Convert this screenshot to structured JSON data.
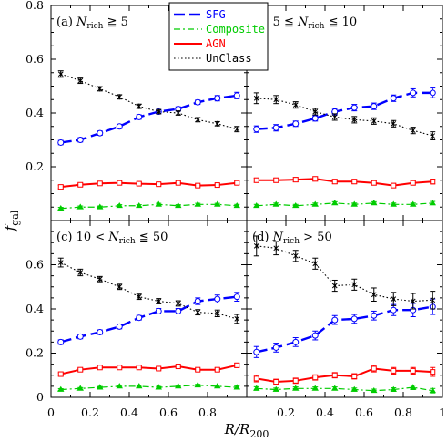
{
  "chart_data": {
    "type": "line",
    "xlabel": "R/R200",
    "ylabel": "fgal",
    "xlim": [
      0,
      1
    ],
    "ylim": [
      0,
      0.8
    ],
    "x_ticks": [
      "0",
      "0.2",
      "0.4",
      "0.6",
      "0.8",
      "1"
    ],
    "y_ticks_bottom": [
      "0",
      "0.2",
      "0.4",
      "0.6"
    ],
    "y_ticks_top": [
      "0.2",
      "0.4",
      "0.6",
      "0.8"
    ],
    "legend": {
      "placement": "top-center",
      "entries": [
        {
          "name": "SFG",
          "color": "#0000ff",
          "style": "long-dash"
        },
        {
          "name": "Composite",
          "color": "#00cc00",
          "style": "dash-dot"
        },
        {
          "name": "AGN",
          "color": "#ff0000",
          "style": "solid"
        },
        {
          "name": "UnClass",
          "color": "#000000",
          "style": "dotted"
        }
      ]
    },
    "x": [
      0.05,
      0.15,
      0.25,
      0.35,
      0.45,
      0.55,
      0.65,
      0.75,
      0.85,
      0.95
    ],
    "panels": [
      {
        "label_prefix": "(a)",
        "label_rich": "N",
        "label_sub": "rich",
        "label_suffix": " ≧ 5",
        "series": [
          {
            "name": "SFG",
            "values": [
              0.29,
              0.3,
              0.325,
              0.35,
              0.385,
              0.405,
              0.415,
              0.44,
              0.455,
              0.465
            ],
            "err": [
              0.008,
              0.008,
              0.008,
              0.008,
              0.008,
              0.008,
              0.008,
              0.008,
              0.01,
              0.012
            ]
          },
          {
            "name": "Composite",
            "values": [
              0.045,
              0.05,
              0.05,
              0.055,
              0.055,
              0.06,
              0.055,
              0.06,
              0.06,
              0.055
            ],
            "err": [
              0.004,
              0.004,
              0.004,
              0.004,
              0.004,
              0.004,
              0.004,
              0.004,
              0.004,
              0.005
            ]
          },
          {
            "name": "AGN",
            "values": [
              0.125,
              0.133,
              0.138,
              0.14,
              0.137,
              0.135,
              0.14,
              0.13,
              0.132,
              0.14
            ],
            "err": [
              0.006,
              0.005,
              0.005,
              0.005,
              0.005,
              0.005,
              0.005,
              0.005,
              0.006,
              0.006
            ]
          },
          {
            "name": "UnClass",
            "values": [
              0.545,
              0.52,
              0.49,
              0.46,
              0.425,
              0.405,
              0.4,
              0.375,
              0.36,
              0.34
            ],
            "err": [
              0.012,
              0.01,
              0.008,
              0.008,
              0.008,
              0.008,
              0.008,
              0.008,
              0.008,
              0.01
            ]
          }
        ]
      },
      {
        "label_prefix": "(b)",
        "label_rich": "5 ≦ N",
        "label_sub": "rich",
        "label_suffix": " ≦ 10",
        "series": [
          {
            "name": "SFG",
            "values": [
              0.34,
              0.345,
              0.36,
              0.38,
              0.405,
              0.42,
              0.425,
              0.455,
              0.475,
              0.475
            ],
            "err": [
              0.012,
              0.012,
              0.01,
              0.01,
              0.012,
              0.012,
              0.012,
              0.012,
              0.015,
              0.018
            ]
          },
          {
            "name": "Composite",
            "values": [
              0.055,
              0.06,
              0.055,
              0.06,
              0.065,
              0.06,
              0.065,
              0.06,
              0.06,
              0.065
            ],
            "err": [
              0.005,
              0.005,
              0.005,
              0.005,
              0.005,
              0.005,
              0.005,
              0.005,
              0.005,
              0.006
            ]
          },
          {
            "name": "AGN",
            "values": [
              0.15,
              0.15,
              0.152,
              0.155,
              0.145,
              0.145,
              0.14,
              0.13,
              0.14,
              0.145
            ],
            "err": [
              0.008,
              0.008,
              0.008,
              0.008,
              0.008,
              0.008,
              0.008,
              0.008,
              0.008,
              0.009
            ]
          },
          {
            "name": "UnClass",
            "values": [
              0.455,
              0.45,
              0.43,
              0.405,
              0.385,
              0.375,
              0.37,
              0.36,
              0.335,
              0.315
            ],
            "err": [
              0.02,
              0.015,
              0.012,
              0.012,
              0.012,
              0.012,
              0.012,
              0.012,
              0.012,
              0.015
            ]
          }
        ]
      },
      {
        "label_prefix": "(c)",
        "label_rich": "10 < N",
        "label_sub": "rich",
        "label_suffix": " ≦ 50",
        "series": [
          {
            "name": "SFG",
            "values": [
              0.25,
              0.275,
              0.295,
              0.32,
              0.36,
              0.39,
              0.39,
              0.435,
              0.445,
              0.455
            ],
            "err": [
              0.01,
              0.01,
              0.01,
              0.01,
              0.01,
              0.012,
              0.012,
              0.015,
              0.018,
              0.02
            ]
          },
          {
            "name": "Composite",
            "values": [
              0.035,
              0.04,
              0.045,
              0.05,
              0.05,
              0.045,
              0.05,
              0.055,
              0.05,
              0.045
            ],
            "err": [
              0.004,
              0.004,
              0.004,
              0.004,
              0.004,
              0.004,
              0.004,
              0.004,
              0.005,
              0.006
            ]
          },
          {
            "name": "AGN",
            "values": [
              0.105,
              0.125,
              0.135,
              0.135,
              0.135,
              0.13,
              0.14,
              0.125,
              0.125,
              0.145
            ],
            "err": [
              0.006,
              0.006,
              0.006,
              0.006,
              0.006,
              0.006,
              0.006,
              0.006,
              0.008,
              0.01
            ]
          },
          {
            "name": "UnClass",
            "values": [
              0.61,
              0.565,
              0.535,
              0.5,
              0.455,
              0.435,
              0.425,
              0.385,
              0.38,
              0.355
            ],
            "err": [
              0.02,
              0.015,
              0.012,
              0.012,
              0.012,
              0.012,
              0.012,
              0.012,
              0.015,
              0.02
            ]
          }
        ]
      },
      {
        "label_prefix": "(d)",
        "label_rich": "N",
        "label_sub": "rich",
        "label_suffix": " > 50",
        "series": [
          {
            "name": "SFG",
            "values": [
              0.205,
              0.225,
              0.25,
              0.28,
              0.35,
              0.355,
              0.37,
              0.395,
              0.395,
              0.41
            ],
            "err": [
              0.025,
              0.02,
              0.02,
              0.02,
              0.02,
              0.02,
              0.02,
              0.025,
              0.03,
              0.035
            ]
          },
          {
            "name": "Composite",
            "values": [
              0.04,
              0.035,
              0.04,
              0.04,
              0.04,
              0.035,
              0.03,
              0.035,
              0.045,
              0.03
            ],
            "err": [
              0.008,
              0.007,
              0.007,
              0.007,
              0.007,
              0.007,
              0.007,
              0.008,
              0.01,
              0.01
            ]
          },
          {
            "name": "AGN",
            "values": [
              0.085,
              0.07,
              0.075,
              0.09,
              0.1,
              0.095,
              0.13,
              0.12,
              0.12,
              0.115
            ],
            "err": [
              0.015,
              0.012,
              0.012,
              0.012,
              0.012,
              0.012,
              0.015,
              0.015,
              0.015,
              0.02
            ]
          },
          {
            "name": "UnClass",
            "values": [
              0.685,
              0.675,
              0.64,
              0.605,
              0.505,
              0.51,
              0.465,
              0.445,
              0.435,
              0.44
            ],
            "err": [
              0.045,
              0.03,
              0.025,
              0.025,
              0.025,
              0.025,
              0.03,
              0.03,
              0.035,
              0.04
            ]
          }
        ]
      }
    ]
  }
}
